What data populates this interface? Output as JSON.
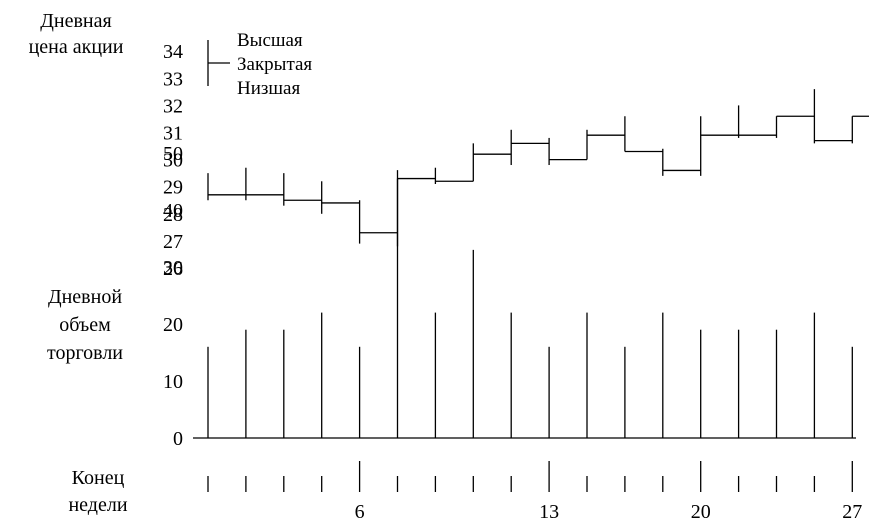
{
  "chart_data": {
    "type": "line",
    "price": {
      "ylabel": [
        "Дневная",
        "цена акции"
      ],
      "yticks": [
        34,
        33,
        32,
        31,
        30,
        29,
        28,
        27,
        26
      ],
      "legend": [
        "Высшая",
        "Закрытая",
        "Низшая"
      ],
      "ylim": [
        26,
        34
      ],
      "bars": [
        {
          "high": 29.5,
          "low": 28.5,
          "close": 28.7
        },
        {
          "high": 29.7,
          "low": 28.5,
          "close": 28.7
        },
        {
          "high": 29.5,
          "low": 28.3,
          "close": 28.5
        },
        {
          "high": 29.2,
          "low": 28.0,
          "close": 28.4
        },
        {
          "high": 28.5,
          "low": 26.9,
          "close": 27.3
        },
        {
          "high": 29.3,
          "low": 26.8,
          "close": 29.3
        },
        {
          "high": 29.7,
          "low": 29.1,
          "close": 29.2
        },
        {
          "high": 30.6,
          "low": 29.2,
          "close": 30.2
        },
        {
          "high": 31.1,
          "low": 29.8,
          "close": 30.6
        },
        {
          "high": 30.8,
          "low": 29.8,
          "close": 30.0
        },
        {
          "high": 31.1,
          "low": 30.0,
          "close": 30.9
        },
        {
          "high": 31.6,
          "low": 30.3,
          "close": 30.3
        },
        {
          "high": 30.4,
          "low": 29.4,
          "close": 29.6
        },
        {
          "high": 31.6,
          "low": 29.4,
          "close": 30.9
        },
        {
          "high": 32.0,
          "low": 30.8,
          "close": 30.9
        },
        {
          "high": 31.6,
          "low": 30.8,
          "close": 31.6
        },
        {
          "high": 32.6,
          "low": 30.6,
          "close": 30.7
        },
        {
          "high": 31.6,
          "low": 30.6,
          "close": 31.6
        }
      ]
    },
    "volume": {
      "ylabel": [
        "Дневной",
        "объем",
        "торговли"
      ],
      "yticks": [
        50,
        40,
        30,
        20,
        10,
        0
      ],
      "ylim": [
        0,
        50
      ],
      "values": [
        16,
        19,
        19,
        22,
        16,
        47,
        22,
        33,
        22,
        16,
        22,
        16,
        22,
        19,
        19,
        19,
        22,
        16
      ]
    },
    "xaxis": {
      "label": [
        "Конец",
        "недели"
      ],
      "tick_labels": [
        {
          "index": 4,
          "label": "6"
        },
        {
          "index": 9,
          "label": "13"
        },
        {
          "index": 13,
          "label": "20"
        },
        {
          "index": 17,
          "label": "27"
        }
      ]
    }
  }
}
